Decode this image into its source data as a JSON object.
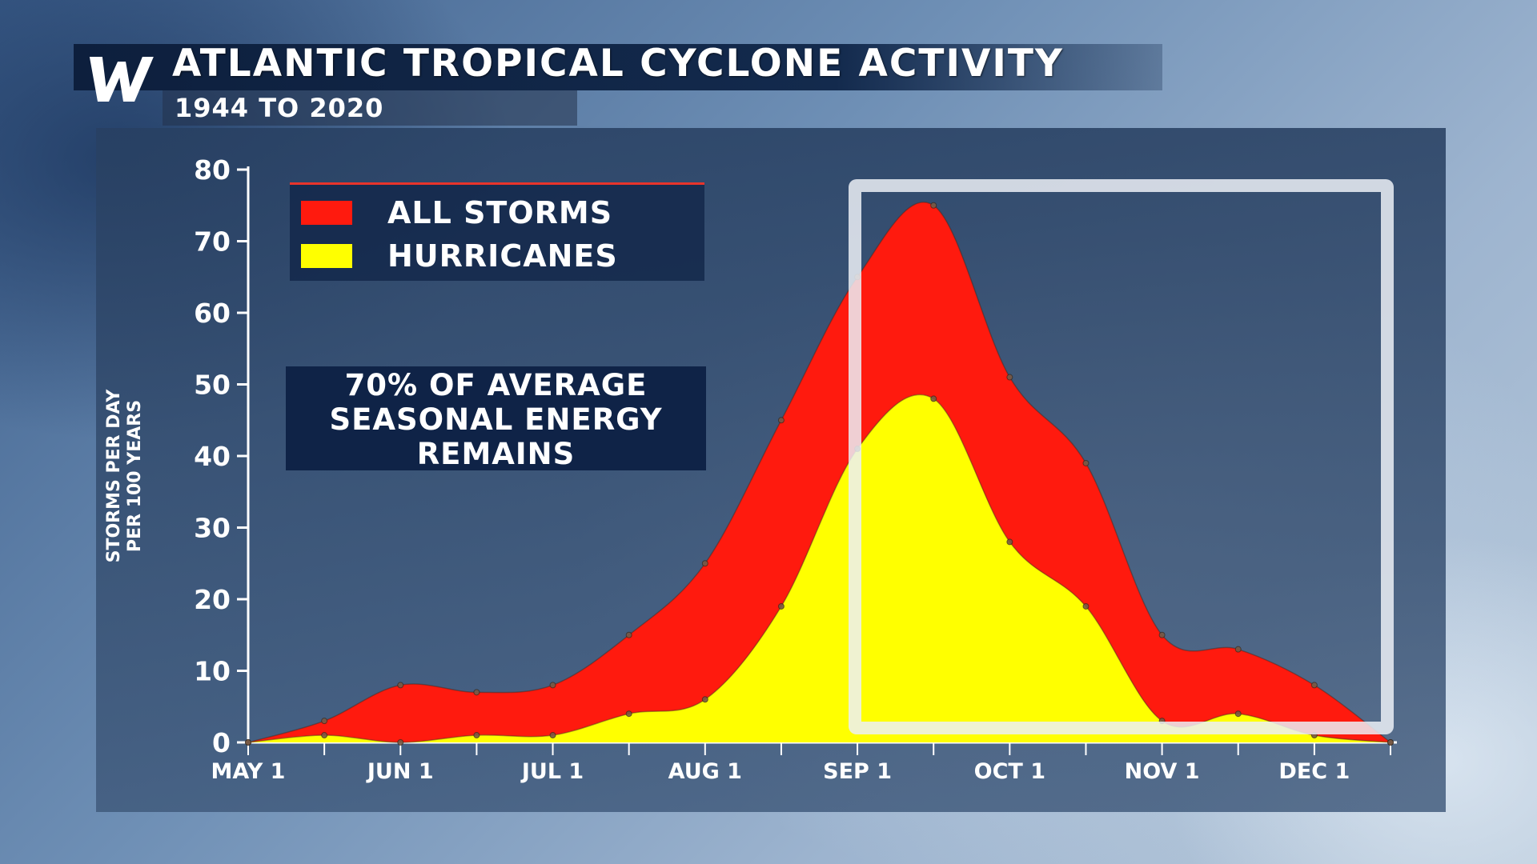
{
  "header": {
    "logo_letter": "W",
    "title": "ATLANTIC TROPICAL CYCLONE ACTIVITY",
    "subtitle": "1944 TO 2020"
  },
  "legend": {
    "items": [
      {
        "label": "ALL STORMS",
        "color": "#ff1a0e"
      },
      {
        "label": "HURRICANES",
        "color": "#ffff00"
      }
    ]
  },
  "annotation": {
    "text": "70% OF AVERAGE\nSEASONAL ENERGY\nREMAINS"
  },
  "colors": {
    "all_storms": "#ff1a0e",
    "hurricanes": "#ffff00",
    "panel": "#2e4a72",
    "header": "#0d1f3d",
    "highlight_box": "#eef2f7"
  },
  "chart_data": {
    "type": "area",
    "title": "ATLANTIC TROPICAL CYCLONE ACTIVITY",
    "subtitle": "1944 TO 2020",
    "ylabel": "STORMS PER DAY\nPER 100 YEARS",
    "xlabel": "",
    "ylim": [
      0,
      80
    ],
    "yticks": [
      0,
      10,
      20,
      30,
      40,
      50,
      60,
      70,
      80
    ],
    "x": [
      "May 1",
      "May 16",
      "Jun 1",
      "Jun 16",
      "Jul 1",
      "Jul 16",
      "Aug 1",
      "Aug 16",
      "Sep 1",
      "Sep 16",
      "Oct 1",
      "Oct 16",
      "Nov 1",
      "Nov 16",
      "Dec 1",
      "Dec 16"
    ],
    "xtick_labels": [
      "MAY 1",
      "JUN 1",
      "JUL 1",
      "AUG 1",
      "SEP 1",
      "OCT 1",
      "NOV 1",
      "DEC 1"
    ],
    "series": [
      {
        "name": "ALL STORMS",
        "color": "#ff1a0e",
        "values": [
          0,
          3,
          8,
          7,
          8,
          15,
          25,
          45,
          65,
          75,
          51,
          39,
          15,
          13,
          8,
          0
        ]
      },
      {
        "name": "HURRICANES",
        "color": "#ffff00",
        "values": [
          0,
          1,
          0,
          1,
          1,
          4,
          6,
          19,
          41,
          48,
          28,
          19,
          3,
          4,
          1,
          0
        ]
      }
    ],
    "highlighted_range": [
      "Sep 1",
      "Dec 16"
    ],
    "legend_position": "top-left",
    "grid": false
  }
}
